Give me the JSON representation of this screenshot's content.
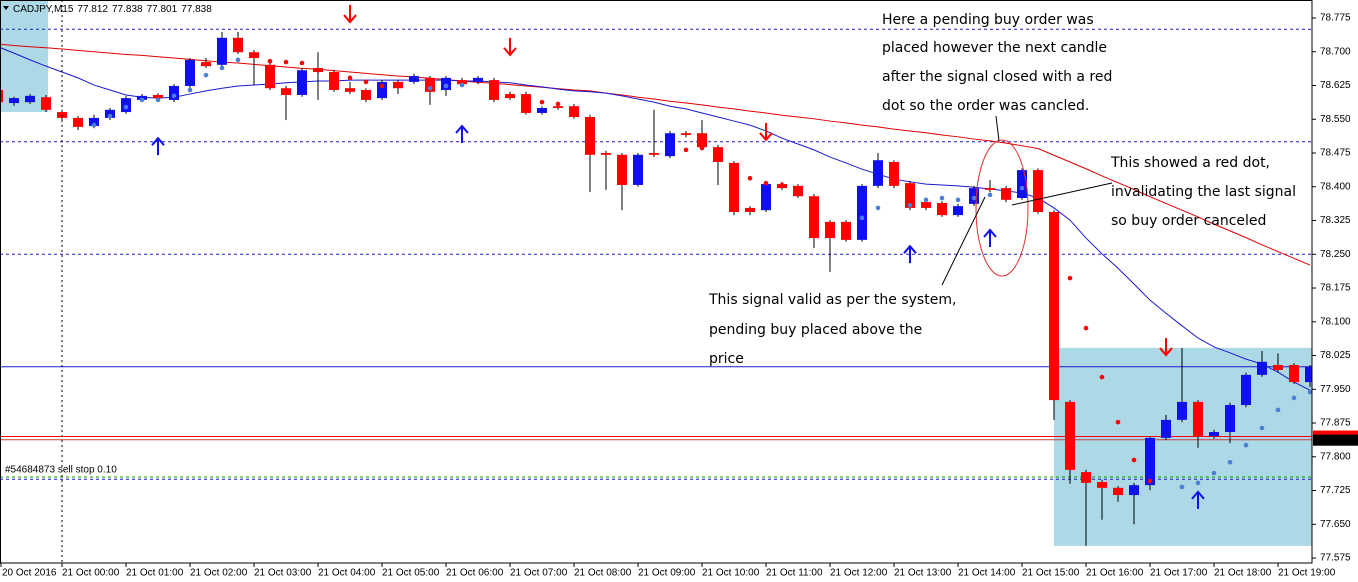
{
  "chart_data": {
    "type": "candlestick",
    "header": {
      "symbol": "CADJPY,M15",
      "open": 77.812,
      "high": 77.838,
      "low": 77.801,
      "close": 77.838
    },
    "categories": [
      "20 Oct 2016",
      null,
      null,
      null,
      "21 Oct 00:00",
      null,
      null,
      null,
      "21 Oct 01:00",
      null,
      null,
      null,
      "21 Oct 02:00",
      null,
      null,
      null,
      "21 Oct 03:00",
      null,
      null,
      null,
      "21 Oct 04:00",
      null,
      null,
      null,
      "21 Oct 05:00",
      null,
      null,
      null,
      "21 Oct 06:00",
      null,
      null,
      null,
      "21 Oct 07:00",
      null,
      null,
      null,
      "21 Oct 08:00",
      null,
      null,
      null,
      "21 Oct 09:00",
      null,
      null,
      null,
      "21 Oct 10:00",
      null,
      null,
      null,
      "21 Oct 11:00",
      null,
      null,
      null,
      "21 Oct 12:00",
      null,
      null,
      null,
      "21 Oct 13:00",
      null,
      null,
      null,
      "21 Oct 14:00",
      null,
      null,
      null,
      "21 Oct 15:00",
      null,
      null,
      null,
      "21 Oct 16:00",
      null,
      null,
      null,
      "21 Oct 17:00",
      null,
      null,
      null,
      "21 Oct 18:00",
      null,
      null,
      null,
      "21 Oct 19:00",
      null,
      null
    ],
    "open": [
      78.615,
      78.586,
      78.588,
      78.599,
      78.566,
      78.553,
      78.535,
      78.553,
      78.566,
      78.593,
      78.604,
      78.593,
      78.624,
      78.677,
      78.671,
      78.731,
      78.699,
      78.671,
      78.619,
      78.604,
      78.664,
      78.655,
      78.619,
      78.615,
      78.597,
      78.633,
      78.633,
      78.642,
      78.615,
      78.637,
      78.633,
      78.637,
      78.606,
      78.606,
      78.564,
      78.579,
      78.579,
      78.555,
      78.475,
      78.471,
      78.404,
      78.475,
      78.468,
      78.519,
      78.519,
      78.488,
      78.453,
      78.353,
      78.348,
      78.406,
      78.402,
      78.379,
      78.322,
      78.322,
      78.282,
      78.402,
      78.455,
      78.408,
      78.366,
      78.364,
      78.337,
      78.362,
      78.397,
      78.397,
      78.375,
      78.437,
      78.344,
      77.922,
      77.766,
      77.744,
      77.731,
      77.715,
      77.737,
      77.842,
      77.882,
      77.922,
      77.846,
      77.855,
      77.915,
      77.982,
      78.004,
      78.004,
      77.966
    ],
    "high": [
      78.619,
      78.6,
      78.606,
      78.604,
      78.571,
      78.557,
      78.56,
      78.575,
      78.602,
      78.606,
      78.608,
      78.628,
      78.686,
      78.686,
      78.744,
      78.744,
      78.704,
      78.677,
      78.624,
      78.664,
      78.699,
      78.659,
      78.633,
      78.619,
      78.637,
      78.637,
      78.651,
      78.646,
      78.646,
      78.642,
      78.646,
      78.642,
      78.611,
      78.611,
      78.579,
      78.584,
      78.584,
      78.56,
      78.48,
      78.475,
      78.475,
      78.571,
      78.524,
      78.524,
      78.548,
      78.493,
      78.457,
      78.357,
      78.411,
      78.411,
      78.406,
      78.384,
      78.326,
      78.326,
      78.406,
      78.475,
      78.459,
      78.413,
      78.371,
      78.368,
      78.362,
      78.402,
      78.415,
      78.402,
      78.441,
      78.441,
      78.348,
      77.926,
      77.771,
      77.749,
      77.735,
      77.742,
      77.846,
      77.893,
      78.042,
      77.926,
      77.86,
      77.92,
      77.987,
      78.035,
      78.03,
      78.008,
      78.004
    ],
    "low": [
      78.582,
      78.58,
      78.584,
      78.566,
      78.548,
      78.526,
      78.53,
      78.548,
      78.562,
      78.588,
      78.593,
      78.588,
      78.619,
      78.664,
      78.666,
      78.695,
      78.626,
      78.615,
      78.548,
      78.6,
      78.593,
      78.611,
      78.606,
      78.588,
      78.593,
      78.606,
      78.628,
      78.582,
      78.602,
      78.624,
      78.628,
      78.588,
      78.593,
      78.56,
      78.56,
      78.571,
      78.551,
      78.388,
      78.393,
      78.348,
      78.4,
      78.466,
      78.464,
      78.51,
      78.484,
      78.404,
      78.337,
      78.337,
      78.344,
      78.393,
      78.375,
      78.264,
      78.211,
      78.278,
      78.278,
      78.397,
      78.397,
      78.348,
      78.348,
      78.333,
      78.333,
      78.357,
      78.388,
      78.366,
      78.371,
      78.34,
      77.882,
      77.74,
      77.602,
      77.66,
      77.7,
      77.65,
      77.726,
      77.837,
      77.877,
      77.82,
      77.84,
      77.83,
      77.91,
      77.978,
      77.988,
      77.962,
      77.955
    ],
    "close": [
      78.588,
      78.597,
      78.602,
      78.571,
      78.553,
      78.533,
      78.553,
      78.571,
      78.597,
      78.602,
      78.597,
      78.624,
      78.682,
      78.668,
      78.731,
      78.699,
      78.686,
      78.619,
      78.604,
      78.659,
      78.655,
      78.615,
      78.611,
      78.593,
      78.633,
      78.619,
      78.646,
      78.611,
      78.642,
      78.628,
      78.642,
      78.593,
      78.597,
      78.564,
      78.575,
      78.575,
      78.555,
      78.471,
      78.471,
      78.404,
      78.471,
      78.471,
      78.519,
      78.515,
      78.488,
      78.455,
      78.344,
      78.344,
      78.406,
      78.397,
      78.379,
      78.286,
      78.286,
      78.282,
      78.402,
      78.459,
      78.402,
      78.353,
      78.353,
      78.337,
      78.357,
      78.397,
      78.393,
      78.371,
      78.437,
      78.344,
      77.926,
      77.771,
      77.742,
      77.731,
      77.715,
      77.737,
      77.842,
      77.882,
      77.922,
      77.846,
      77.855,
      77.915,
      77.982,
      78.011,
      77.993,
      77.966,
      78.0
    ],
    "up_color": "#1010e8",
    "down_color": "#ff0000",
    "moving_averages": [
      {
        "color": "#e00000",
        "values": [
          78.717,
          78.714,
          78.711,
          78.709,
          78.706,
          78.703,
          78.7,
          78.697,
          78.694,
          78.692,
          78.689,
          78.686,
          78.683,
          78.68,
          78.677,
          78.675,
          78.672,
          78.669,
          78.666,
          78.663,
          78.661,
          78.658,
          78.655,
          78.652,
          78.649,
          78.646,
          78.644,
          78.641,
          78.638,
          78.635,
          78.632,
          78.63,
          78.627,
          78.624,
          78.621,
          78.618,
          78.615,
          78.613,
          78.608,
          78.604,
          78.599,
          78.595,
          78.59,
          78.586,
          78.582,
          78.577,
          78.573,
          78.568,
          78.564,
          78.559,
          78.555,
          78.551,
          78.546,
          78.542,
          78.537,
          78.533,
          78.528,
          78.524,
          78.52,
          78.515,
          78.511,
          78.506,
          78.502,
          78.497,
          78.491,
          78.485,
          78.47,
          78.455,
          78.44,
          78.424,
          78.409,
          78.394,
          78.378,
          78.363,
          78.348,
          78.333,
          78.317,
          78.302,
          78.287,
          78.271,
          78.256,
          78.241,
          78.226
        ]
      },
      {
        "color": "#1a1ad0",
        "values": [
          78.711,
          78.697,
          78.682,
          78.668,
          78.655,
          78.642,
          78.626,
          78.615,
          78.604,
          78.599,
          78.597,
          78.599,
          78.606,
          78.613,
          78.619,
          78.624,
          78.626,
          78.628,
          78.631,
          78.633,
          78.635,
          78.635,
          78.637,
          78.637,
          78.637,
          78.637,
          78.637,
          78.637,
          78.637,
          78.635,
          78.635,
          78.633,
          78.631,
          78.626,
          78.622,
          78.617,
          78.613,
          78.611,
          78.608,
          78.602,
          78.595,
          78.588,
          78.579,
          78.573,
          78.564,
          78.555,
          78.546,
          78.537,
          78.524,
          78.508,
          78.495,
          78.482,
          78.466,
          78.453,
          78.439,
          78.428,
          78.417,
          78.411,
          78.406,
          78.404,
          78.402,
          78.399,
          78.395,
          78.391,
          78.386,
          78.375,
          78.353,
          78.326,
          78.286,
          78.251,
          78.219,
          78.184,
          78.148,
          78.119,
          78.091,
          78.064,
          78.044,
          78.031,
          78.017,
          78.006,
          77.988,
          77.966,
          77.948
        ]
      }
    ],
    "signal_dots": [
      {
        "color": "#ff0000",
        "values": [
          null,
          null,
          null,
          null,
          null,
          null,
          null,
          null,
          null,
          null,
          null,
          null,
          null,
          null,
          null,
          null,
          78.691,
          78.679,
          78.677,
          78.675,
          78.659,
          78.646,
          78.642,
          78.633,
          78.624,
          null,
          null,
          null,
          null,
          null,
          null,
          78.611,
          78.602,
          78.597,
          78.588,
          78.584,
          null,
          null,
          null,
          null,
          null,
          null,
          null,
          78.482,
          78.486,
          78.471,
          null,
          78.419,
          78.408,
          78.404,
          78.388,
          null,
          null,
          null,
          null,
          null,
          null,
          null,
          null,
          null,
          null,
          null,
          null,
          null,
          null,
          null,
          78.304,
          78.197,
          78.086,
          77.977,
          77.877,
          77.793,
          77.746,
          null,
          null,
          null,
          null,
          null,
          null,
          null,
          null,
          null,
          null
        ]
      },
      {
        "color": "#4a7fd8",
        "values": [
          null,
          null,
          null,
          null,
          null,
          null,
          78.537,
          78.557,
          78.577,
          78.593,
          78.593,
          78.602,
          78.615,
          78.648,
          78.664,
          78.682,
          null,
          null,
          null,
          null,
          null,
          null,
          null,
          null,
          null,
          null,
          null,
          78.619,
          78.624,
          78.626,
          null,
          null,
          null,
          null,
          null,
          null,
          null,
          null,
          null,
          null,
          null,
          null,
          null,
          null,
          null,
          null,
          null,
          null,
          null,
          null,
          null,
          null,
          null,
          null,
          78.331,
          78.353,
          null,
          78.359,
          78.371,
          78.375,
          78.371,
          78.375,
          78.382,
          null,
          78.397,
          null,
          null,
          null,
          null,
          null,
          null,
          null,
          null,
          null,
          77.733,
          77.742,
          77.764,
          77.788,
          77.826,
          77.864,
          77.904,
          77.931,
          77.944
        ]
      }
    ],
    "arrows": [
      {
        "direction": "down",
        "color": "#ff0000",
        "values": [
          null,
          null,
          null,
          null,
          null,
          null,
          null,
          null,
          null,
          null,
          null,
          null,
          null,
          null,
          null,
          null,
          null,
          null,
          null,
          null,
          null,
          null,
          78.766,
          null,
          null,
          null,
          null,
          null,
          null,
          null,
          null,
          null,
          78.693,
          null,
          null,
          null,
          null,
          null,
          null,
          null,
          null,
          null,
          null,
          null,
          null,
          null,
          null,
          null,
          78.504,
          null,
          null,
          null,
          null,
          null,
          null,
          null,
          null,
          null,
          null,
          null,
          null,
          null,
          null,
          null,
          null,
          null,
          null,
          null,
          null,
          null,
          null,
          null,
          null,
          78.026,
          null,
          null,
          null,
          null,
          null,
          null,
          null,
          null,
          null
        ]
      },
      {
        "direction": "up",
        "color": "#1010e8",
        "values": [
          null,
          null,
          null,
          null,
          null,
          null,
          null,
          null,
          null,
          null,
          78.508,
          null,
          null,
          null,
          null,
          null,
          null,
          null,
          null,
          null,
          null,
          null,
          null,
          null,
          null,
          null,
          null,
          null,
          null,
          78.535,
          null,
          null,
          null,
          null,
          null,
          null,
          null,
          null,
          null,
          null,
          null,
          null,
          null,
          null,
          null,
          null,
          null,
          null,
          null,
          null,
          null,
          null,
          null,
          null,
          null,
          null,
          null,
          78.268,
          null,
          null,
          null,
          null,
          78.304,
          null,
          null,
          null,
          null,
          null,
          null,
          null,
          null,
          null,
          null,
          null,
          null,
          77.722,
          null,
          null,
          null,
          null,
          null,
          null,
          null
        ]
      }
    ],
    "levels": [
      {
        "value": 78.75,
        "color": "#1a1ad0",
        "style": "dashed"
      },
      {
        "value": 78.5,
        "color": "#1a1ad0",
        "style": "dashed"
      },
      {
        "value": 78.25,
        "color": "#1a1ad0",
        "style": "dashed"
      },
      {
        "value": 77.75,
        "color": "#1a1ad0",
        "style": "dashed"
      },
      {
        "value": 78,
        "color": "#1a1ad0",
        "style": "solid"
      },
      {
        "value": 77.845,
        "color": "#ff0000",
        "style": "solid",
        "tag": true
      },
      {
        "value": 77.838,
        "color": "#c04040",
        "style": "solid"
      },
      {
        "value": 77.755,
        "color": "#00a000",
        "style": "dashed",
        "label": "#54684873 sell stop 0.10"
      }
    ],
    "zones": [
      {
        "start": 0,
        "end": 3,
        "high": 78.815,
        "low": 78.566,
        "color": "#add8e6"
      },
      {
        "start": 66,
        "end": 82,
        "high": 78.042,
        "low": 77.602,
        "color": "#add8e6"
      }
    ],
    "price_tag": 77.838,
    "ylim": [
      77.564,
      78.815
    ],
    "yticks": [
      78.775,
      {
        "value": 78.7,
        "label": "78.700"
      },
      78.625,
      {
        "value": 78.55,
        "label": "78.550"
      },
      78.475,
      {
        "value": 78.4,
        "label": "78.400"
      },
      78.325,
      {
        "value": 78.25,
        "label": "78.250"
      },
      78.175,
      {
        "value": 78.1,
        "label": "78.100"
      },
      78.025,
      {
        "value": 77.95,
        "label": "77.950"
      },
      77.875,
      {
        "value": 77.8,
        "label": "77.800"
      },
      77.725,
      {
        "value": 77.65,
        "label": "77.650"
      },
      77.575
    ],
    "grid": false
  },
  "annotations": [
    {
      "lines": [
        "Here a pending buy order was",
        "placed however the next candle",
        "after the signal closed with a red",
        "dot so the order was cancled."
      ]
    },
    {
      "lines": [
        "This showed a red dot,",
        "invalidating the last signal",
        "so buy order canceled"
      ]
    },
    {
      "lines": [
        "This signal valid as per the system,",
        "pending buy placed above the",
        "price"
      ]
    }
  ]
}
